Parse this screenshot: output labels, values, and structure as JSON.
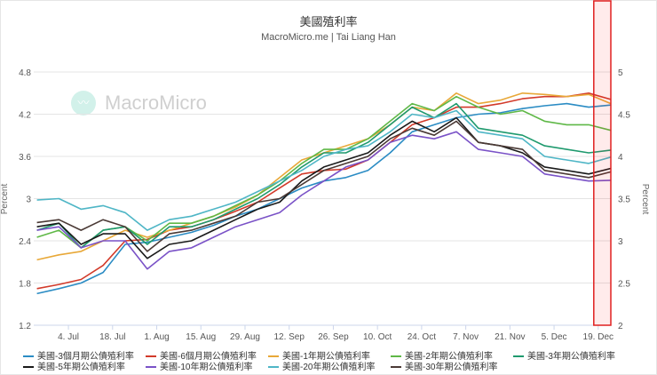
{
  "chart_data": {
    "type": "line",
    "title": "美國殖利率",
    "subtitle": "MacroMicro.me | Tai Liang Han",
    "watermark": "MacroMicro",
    "ylabel": "Percent",
    "ylabel_right": "Percent",
    "ylim": [
      1.2,
      4.8
    ],
    "ylim_right": [
      2,
      5
    ],
    "yticks": [
      "1.2",
      "1.8",
      "2.4",
      "3",
      "3.6",
      "4.2",
      "4.8"
    ],
    "yticks_right": [
      "2",
      "2.5",
      "3",
      "3.5",
      "4",
      "4.5",
      "5"
    ],
    "xlim": [
      "2022-06-23",
      "2022-12-23"
    ],
    "xticks": [
      {
        "label": "4. Jul",
        "date": "2022-07-04"
      },
      {
        "label": "18. Jul",
        "date": "2022-07-18"
      },
      {
        "label": "1. Aug",
        "date": "2022-08-01"
      },
      {
        "label": "15. Aug",
        "date": "2022-08-15"
      },
      {
        "label": "29. Aug",
        "date": "2022-08-29"
      },
      {
        "label": "12. Sep",
        "date": "2022-09-12"
      },
      {
        "label": "26. Sep",
        "date": "2022-09-26"
      },
      {
        "label": "10. Oct",
        "date": "2022-10-10"
      },
      {
        "label": "24. Oct",
        "date": "2022-10-24"
      },
      {
        "label": "7. Nov",
        "date": "2022-11-07"
      },
      {
        "label": "21. Nov",
        "date": "2022-11-21"
      },
      {
        "label": "5. Dec",
        "date": "2022-12-05"
      },
      {
        "label": "19. Dec",
        "date": "2022-12-19"
      }
    ],
    "highlight_range": [
      "2022-12-19",
      "2022-12-23"
    ],
    "grid": true,
    "legend_position": "bottom",
    "x": [
      "2022-06-24",
      "2022-07-01",
      "2022-07-08",
      "2022-07-15",
      "2022-07-22",
      "2022-07-29",
      "2022-08-05",
      "2022-08-12",
      "2022-08-19",
      "2022-08-26",
      "2022-09-02",
      "2022-09-09",
      "2022-09-16",
      "2022-09-23",
      "2022-09-30",
      "2022-10-07",
      "2022-10-14",
      "2022-10-21",
      "2022-10-28",
      "2022-11-04",
      "2022-11-11",
      "2022-11-18",
      "2022-11-25",
      "2022-12-02",
      "2022-12-09",
      "2022-12-16",
      "2022-12-23"
    ],
    "series": [
      {
        "name": "美國-3個月期公債殖利率",
        "color": "#2b8cc4",
        "values": [
          1.65,
          1.72,
          1.8,
          1.95,
          2.35,
          2.38,
          2.45,
          2.52,
          2.62,
          2.75,
          2.85,
          3.0,
          3.15,
          3.25,
          3.3,
          3.4,
          3.65,
          3.95,
          4.05,
          4.15,
          4.2,
          4.22,
          4.28,
          4.32,
          4.35,
          4.3,
          4.33
        ]
      },
      {
        "name": "美國-6個月期公債殖利率",
        "color": "#d23a2a",
        "values": [
          1.72,
          1.78,
          1.85,
          2.05,
          2.4,
          2.42,
          2.55,
          2.6,
          2.7,
          2.82,
          2.95,
          3.15,
          3.35,
          3.4,
          3.42,
          3.55,
          3.8,
          4.05,
          4.15,
          4.3,
          4.3,
          4.35,
          4.42,
          4.45,
          4.45,
          4.5,
          4.41
        ]
      },
      {
        "name": "美國-1年期公債殖利率",
        "color": "#e8a838",
        "values": [
          2.13,
          2.2,
          2.25,
          2.4,
          2.55,
          2.45,
          2.55,
          2.65,
          2.75,
          2.88,
          3.05,
          3.3,
          3.55,
          3.65,
          3.75,
          3.85,
          4.05,
          4.3,
          4.25,
          4.5,
          4.35,
          4.4,
          4.5,
          4.48,
          4.45,
          4.48,
          4.35
        ]
      },
      {
        "name": "美國-2年期公債殖利率",
        "color": "#5fb847",
        "values": [
          2.45,
          2.55,
          2.3,
          2.55,
          2.6,
          2.4,
          2.65,
          2.65,
          2.75,
          2.9,
          3.05,
          3.25,
          3.5,
          3.7,
          3.7,
          3.85,
          4.1,
          4.35,
          4.25,
          4.45,
          4.3,
          4.2,
          4.25,
          4.1,
          4.05,
          4.05,
          3.97
        ]
      },
      {
        "name": "美國-3年期公債殖利率",
        "color": "#1f9a6e",
        "values": [
          2.55,
          2.65,
          2.3,
          2.55,
          2.6,
          2.35,
          2.6,
          2.6,
          2.7,
          2.85,
          3.0,
          3.2,
          3.45,
          3.65,
          3.65,
          3.8,
          4.05,
          4.3,
          4.15,
          4.35,
          4.0,
          3.95,
          3.9,
          3.75,
          3.7,
          3.65,
          3.69
        ]
      },
      {
        "name": "美國-5年期公債殖利率",
        "color": "#1a1a1a",
        "values": [
          2.6,
          2.65,
          2.35,
          2.5,
          2.5,
          2.15,
          2.35,
          2.4,
          2.55,
          2.7,
          2.85,
          2.95,
          3.25,
          3.45,
          3.55,
          3.65,
          3.9,
          4.1,
          3.95,
          4.15,
          3.8,
          3.75,
          3.65,
          3.45,
          3.4,
          3.35,
          3.43
        ]
      },
      {
        "name": "美國-10年期公債殖利率",
        "color": "#7a52c7",
        "values": [
          2.55,
          2.6,
          2.3,
          2.4,
          2.4,
          2.0,
          2.25,
          2.3,
          2.45,
          2.6,
          2.7,
          2.8,
          3.05,
          3.25,
          3.45,
          3.55,
          3.8,
          3.9,
          3.85,
          3.95,
          3.7,
          3.65,
          3.6,
          3.35,
          3.3,
          3.25,
          3.26
        ]
      },
      {
        "name": "美國-20年期公債殖利率",
        "color": "#4fb6c6",
        "values": [
          2.98,
          3.0,
          2.85,
          2.9,
          2.8,
          2.55,
          2.7,
          2.75,
          2.85,
          2.95,
          3.1,
          3.25,
          3.4,
          3.6,
          3.7,
          3.75,
          3.95,
          4.2,
          4.15,
          4.25,
          3.95,
          3.9,
          3.85,
          3.6,
          3.55,
          3.5,
          3.59
        ]
      },
      {
        "name": "美國-30年期公債殖利率",
        "color": "#4b3a36",
        "values": [
          2.66,
          2.7,
          2.55,
          2.7,
          2.6,
          2.25,
          2.5,
          2.55,
          2.65,
          2.75,
          2.95,
          3.0,
          3.2,
          3.4,
          3.5,
          3.6,
          3.85,
          4.0,
          3.9,
          4.1,
          3.8,
          3.75,
          3.7,
          3.4,
          3.35,
          3.3,
          3.38
        ]
      }
    ]
  }
}
